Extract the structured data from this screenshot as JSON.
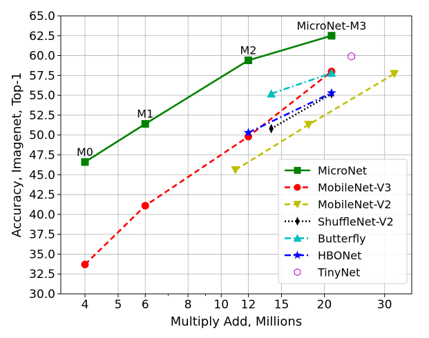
{
  "chart_data": {
    "type": "line",
    "xlabel": "Multiply Add, Millions",
    "ylabel": "Accuracy, Imagenet, Top-1",
    "xscale": "log",
    "xlim": [
      3.4,
      36
    ],
    "ylim": [
      30.0,
      65.0
    ],
    "xticks": [
      4,
      5,
      6,
      8,
      10,
      12,
      15,
      20,
      30
    ],
    "yticks": [
      30.0,
      32.5,
      35.0,
      37.5,
      40.0,
      42.5,
      45.0,
      47.5,
      50.0,
      52.5,
      55.0,
      57.5,
      60.0,
      62.5,
      65.0
    ],
    "grid": true,
    "legend_position": "lower-right",
    "series": [
      {
        "name": "MicroNet",
        "color": "#008000",
        "marker": "square",
        "dash": "solid",
        "x": [
          4,
          6,
          12,
          21
        ],
        "y": [
          46.6,
          51.4,
          59.4,
          62.5
        ],
        "labels": [
          "M0",
          "M1",
          "M2",
          "MicroNet-M3"
        ]
      },
      {
        "name": "MobileNet-V3",
        "color": "#ff0000",
        "marker": "circle",
        "dash": "dashed",
        "x": [
          4,
          6,
          12,
          21
        ],
        "y": [
          33.7,
          41.1,
          49.8,
          58.0
        ]
      },
      {
        "name": "MobileNet-V2",
        "color": "#bfbf00",
        "marker": "triangle-down",
        "dash": "dashed",
        "x": [
          11,
          18,
          32
        ],
        "y": [
          45.6,
          51.3,
          57.7
        ]
      },
      {
        "name": "ShuffleNet-V2",
        "color": "#000000",
        "marker": "thin-diamond",
        "dash": "dotted",
        "x": [
          14,
          21
        ],
        "y": [
          50.8,
          55.2
        ]
      },
      {
        "name": "Butterfly",
        "color": "#00bfbf",
        "marker": "triangle-up",
        "dash": "dashdot",
        "x": [
          14,
          21
        ],
        "y": [
          55.2,
          57.8
        ]
      },
      {
        "name": "HBONet",
        "color": "#0000ff",
        "marker": "star",
        "dash": "dashdot",
        "x": [
          12,
          21
        ],
        "y": [
          50.3,
          55.3
        ]
      },
      {
        "name": "TinyNet",
        "color": "#bf00bf",
        "marker": "hexagon",
        "dash": "none",
        "x": [
          24
        ],
        "y": [
          59.9
        ]
      }
    ]
  }
}
